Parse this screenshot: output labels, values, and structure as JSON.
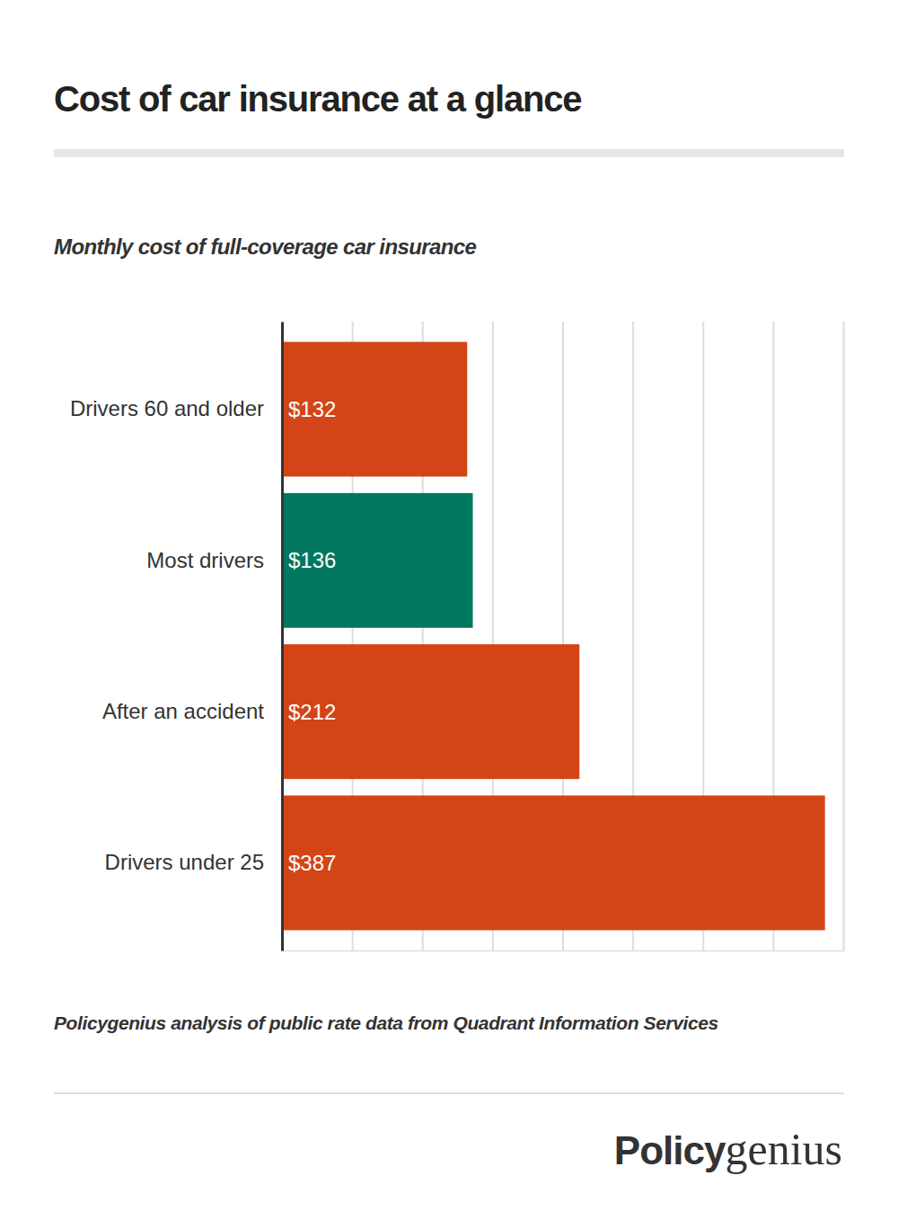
{
  "chart_data": {
    "type": "bar",
    "orientation": "horizontal",
    "title": "Cost of car insurance at a glance",
    "subtitle": "Monthly cost of full-coverage car insurance",
    "source": "Policygenius analysis of public rate data from Quadrant Information Services",
    "logo": [
      "Policy",
      "genius"
    ],
    "categories": [
      "Drivers 60 and older",
      "Most drivers",
      "After an accident",
      "Drivers under 25"
    ],
    "values": [
      132,
      136,
      212,
      387
    ],
    "value_labels": [
      "$132",
      "$136",
      "$212",
      "$387"
    ],
    "colors": [
      "#d34516",
      "#00775f",
      "#d34516",
      "#d34516"
    ],
    "data_labels": true,
    "xlim": [
      0,
      400
    ],
    "xticks": [
      0,
      50,
      100,
      150,
      200,
      250,
      300,
      350,
      400
    ],
    "grid": true,
    "tick_labels": "y"
  }
}
